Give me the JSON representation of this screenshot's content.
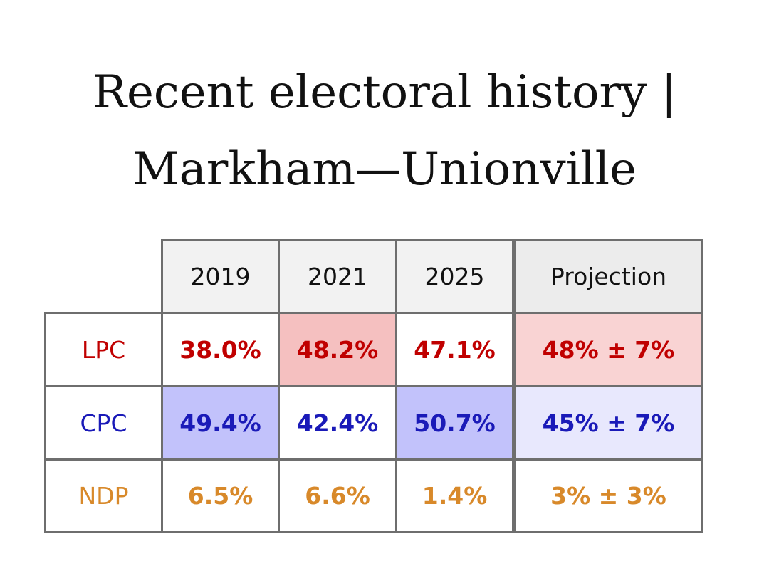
{
  "title_line1": "Recent electoral history |",
  "title_line2": "Markham—Unionville",
  "chart_data": {
    "type": "table",
    "title": "Recent electoral history | Markham—Unionville",
    "columns": [
      "2019",
      "2021",
      "2025",
      "Projection"
    ],
    "rows": [
      {
        "party": "LPC",
        "color": "#c00000",
        "values": [
          "38.0%",
          "48.2%",
          "47.1%",
          "48% ± 7%"
        ],
        "highlight": [
          null,
          "#f5c0c0",
          null,
          "#f9d3d3"
        ]
      },
      {
        "party": "CPC",
        "color": "#1a1ab8",
        "values": [
          "49.4%",
          "42.4%",
          "50.7%",
          "45% ± 7%"
        ],
        "highlight": [
          "#c2c2fb",
          null,
          "#c2c2fb",
          "#e8e8fd"
        ]
      },
      {
        "party": "NDP",
        "color": "#d8892a",
        "values": [
          "6.5%",
          "6.6%",
          "1.4%",
          "3% ± 3%"
        ],
        "highlight": [
          null,
          null,
          null,
          null
        ]
      }
    ]
  }
}
